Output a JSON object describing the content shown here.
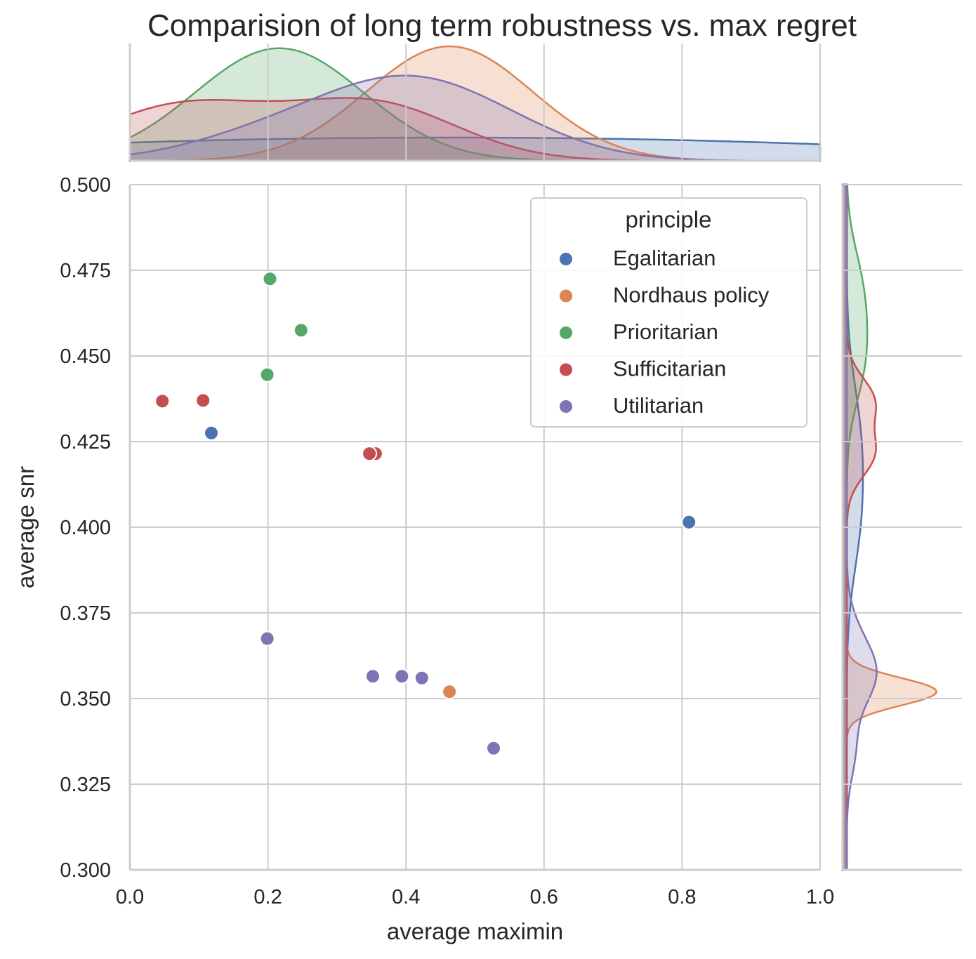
{
  "chart_data": {
    "type": "scatter",
    "title": "Comparision of long term robustness vs. max regret",
    "xlabel": "average maximin",
    "ylabel": "average snr",
    "xlim": [
      0.0,
      1.0
    ],
    "ylim": [
      0.3,
      0.5
    ],
    "xticks": [
      "0.0",
      "0.2",
      "0.4",
      "0.6",
      "0.8",
      "1.0"
    ],
    "yticks": [
      "0.300",
      "0.325",
      "0.350",
      "0.375",
      "0.400",
      "0.425",
      "0.450",
      "0.475",
      "0.500"
    ],
    "grid": true,
    "marginal": "kde",
    "legend": {
      "title": "principle",
      "placement": "top-right",
      "entries": [
        "Egalitarian",
        "Nordhaus policy",
        "Prioritarian",
        "Sufficitarian",
        "Utilitarian"
      ]
    },
    "series": [
      {
        "name": "Egalitarian",
        "color": "#4c72b0",
        "points": [
          [
            0.118,
            0.4275
          ],
          [
            0.81,
            0.4015
          ]
        ]
      },
      {
        "name": "Nordhaus policy",
        "color": "#dd8452",
        "points": [
          [
            0.463,
            0.352
          ]
        ]
      },
      {
        "name": "Prioritarian",
        "color": "#55a868",
        "points": [
          [
            0.203,
            0.4725
          ],
          [
            0.248,
            0.4575
          ],
          [
            0.199,
            0.4445
          ]
        ]
      },
      {
        "name": "Sufficitarian",
        "color": "#c44e52",
        "points": [
          [
            0.047,
            0.4368
          ],
          [
            0.106,
            0.437
          ],
          [
            0.356,
            0.4215
          ],
          [
            0.347,
            0.4215
          ]
        ]
      },
      {
        "name": "Utilitarian",
        "color": "#8172b3",
        "points": [
          [
            0.199,
            0.3675
          ],
          [
            0.352,
            0.3565
          ],
          [
            0.394,
            0.3565
          ],
          [
            0.423,
            0.356
          ],
          [
            0.527,
            0.3355
          ]
        ]
      }
    ]
  }
}
